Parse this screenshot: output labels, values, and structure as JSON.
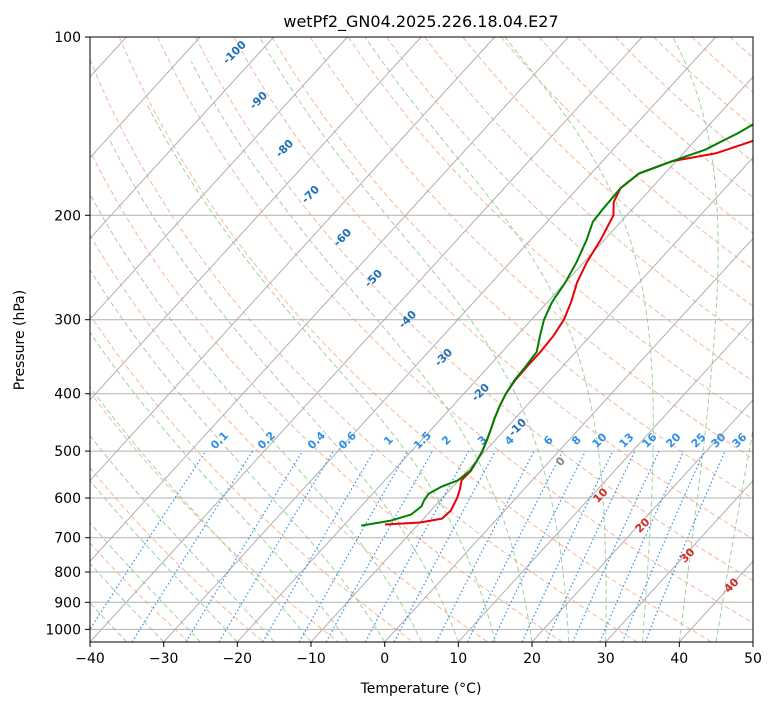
{
  "chart_data": {
    "type": "skew-t",
    "title": "wetPf2_GN04.2025.226.18.04.E27",
    "xlabel": "Temperature (°C)",
    "ylabel": "Pressure (hPa)",
    "xlim": [
      -40,
      50
    ],
    "ylim": [
      1050,
      100
    ],
    "yscale": "log",
    "grid": true,
    "x_ticks": [
      -40,
      -30,
      -20,
      -10,
      0,
      10,
      20,
      30,
      40,
      50
    ],
    "y_ticks": [
      100,
      200,
      300,
      400,
      500,
      600,
      700,
      800,
      900,
      1000
    ],
    "temperature_profile": {
      "color": "#e8000b",
      "points": [
        [
          665,
          -14.5
        ],
        [
          660,
          -10
        ],
        [
          650,
          -7.5
        ],
        [
          630,
          -7.3
        ],
        [
          600,
          -8
        ],
        [
          580,
          -8.7
        ],
        [
          560,
          -9.6
        ],
        [
          540,
          -9.5
        ],
        [
          520,
          -9.9
        ],
        [
          500,
          -10.4
        ],
        [
          480,
          -11.1
        ],
        [
          460,
          -11.9
        ],
        [
          440,
          -12.8
        ],
        [
          420,
          -13.6
        ],
        [
          400,
          -14.3
        ],
        [
          380,
          -14.7
        ],
        [
          360,
          -14.8
        ],
        [
          340,
          -14.8
        ],
        [
          320,
          -15.0
        ],
        [
          300,
          -15.6
        ],
        [
          280,
          -16.8
        ],
        [
          260,
          -18.4
        ],
        [
          240,
          -19.6
        ],
        [
          220,
          -20.5
        ],
        [
          200,
          -21.8
        ],
        [
          190,
          -23.4
        ],
        [
          180,
          -24.2
        ],
        [
          170,
          -23.5
        ],
        [
          162,
          -20.5
        ],
        [
          157,
          -15.5
        ],
        [
          150,
          -12.2
        ],
        [
          140,
          -9.8
        ],
        [
          130,
          -7.3
        ],
        [
          120,
          -6.0
        ],
        [
          110,
          -5.6
        ],
        [
          100,
          -5.3
        ]
      ]
    },
    "dewpoint_profile": {
      "color": "#008000",
      "points": [
        [
          668,
          -17.6
        ],
        [
          655,
          -14.2
        ],
        [
          640,
          -12.2
        ],
        [
          620,
          -11.8
        ],
        [
          605,
          -12.2
        ],
        [
          590,
          -12.4
        ],
        [
          575,
          -11.6
        ],
        [
          560,
          -10.1
        ],
        [
          540,
          -9.6
        ],
        [
          520,
          -9.9
        ],
        [
          500,
          -10.4
        ],
        [
          480,
          -11.1
        ],
        [
          460,
          -11.9
        ],
        [
          440,
          -12.8
        ],
        [
          420,
          -13.6
        ],
        [
          400,
          -14.3
        ],
        [
          380,
          -14.8
        ],
        [
          360,
          -15.0
        ],
        [
          340,
          -15.3
        ],
        [
          320,
          -16.8
        ],
        [
          300,
          -18.3
        ],
        [
          280,
          -19.4
        ],
        [
          260,
          -20.0
        ],
        [
          240,
          -21.0
        ],
        [
          220,
          -22.4
        ],
        [
          205,
          -23.8
        ],
        [
          195,
          -24.0
        ],
        [
          180,
          -24.2
        ],
        [
          170,
          -23.5
        ],
        [
          162,
          -20.5
        ],
        [
          155,
          -17.5
        ],
        [
          145,
          -15.0
        ],
        [
          135,
          -13.0
        ],
        [
          125,
          -10.5
        ],
        [
          115,
          -8.5
        ],
        [
          108,
          -6.8
        ],
        [
          100,
          -5.5
        ]
      ]
    },
    "dry_adiabat_labels": [
      "-100",
      "-90",
      "-80",
      "-70",
      "-60",
      "-50",
      "-40",
      "-30",
      "-20",
      "-10"
    ],
    "mixing_ratio_labels": [
      "0.1",
      "0.2",
      "0.4",
      "0.6",
      "1",
      "1.5",
      "2",
      "3",
      "4",
      "6",
      "8",
      "10",
      "13",
      "16",
      "20",
      "25",
      "30",
      "36"
    ],
    "moist_adiabat_labels": [
      "0",
      "10",
      "20",
      "30",
      "40"
    ],
    "colors": {
      "isotherm": "#b0b0b0",
      "dry_adiabat": "#f4a582",
      "moist_adiabat": "#8fc98f",
      "mixing_ratio": "#2f8fe8",
      "dry_label": "#1f6fb4",
      "moist_label": "#d62828",
      "moist_label_zero": "#888888",
      "brown_adiabat": "#d8bf9c"
    }
  }
}
